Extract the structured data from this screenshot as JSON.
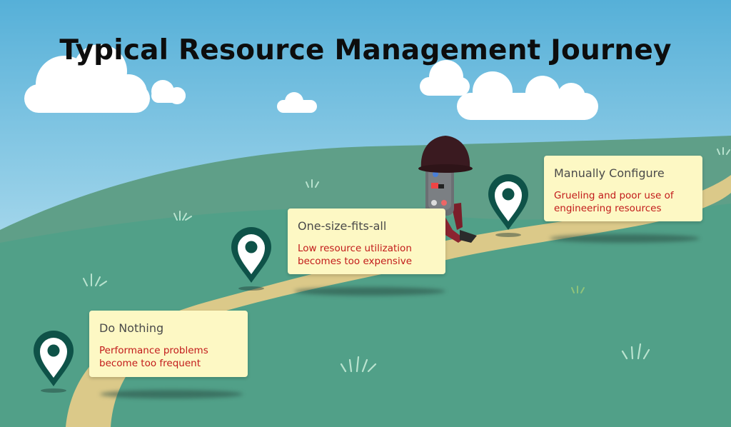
{
  "title": "Typical Resource Management Journey",
  "colors": {
    "sky_top": "#5ab3da",
    "sky_bottom": "#d8eef6",
    "hill_back": "#5e9e86",
    "hill_front": "#4f9d86",
    "path": "#dccb8a",
    "card_bg": "#fdf8c4",
    "card_title": "#4a4a4a",
    "card_desc": "#c21a1a",
    "pin": "#0d5349"
  },
  "stages": [
    {
      "title": "Do Nothing",
      "lines": [
        "Performance problems",
        "become too frequent"
      ]
    },
    {
      "title": "One-size-fits-all",
      "lines": [
        "Low resource utilization",
        "becomes too expensive"
      ]
    },
    {
      "title": "Manually Configure",
      "lines": [
        "Grueling and poor use of",
        "engineering resources"
      ]
    }
  ],
  "icons": [
    "location-pin-icon",
    "cloud-icon",
    "grass-tuft-icon",
    "hiker-figure"
  ]
}
